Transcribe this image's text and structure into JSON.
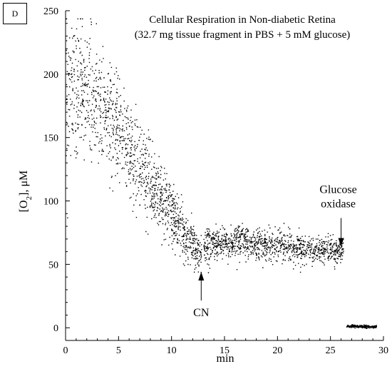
{
  "panel_label": "D",
  "chart_data": {
    "type": "scatter",
    "title": "Cellular Respiration in Non-diabetic Retina",
    "subtitle": "(32.7 mg tissue fragment in PBS + 5 mM glucose)",
    "xlabel": "min",
    "ylabel_main": "[O",
    "ylabel_sub": "2",
    "ylabel_tail": "], μM",
    "xlim": [
      0,
      30
    ],
    "ylim": [
      -10,
      250
    ],
    "xticks": [
      0,
      5,
      10,
      15,
      20,
      25,
      30
    ],
    "yticks": [
      0,
      50,
      100,
      150,
      200,
      250
    ],
    "grid": false,
    "marker_color": "#000000",
    "annotations": [
      {
        "label": "CN",
        "x": 12.8,
        "y": 44
      },
      {
        "label_line1": "Glucose",
        "label_line2": "oxidase",
        "x": 26.0,
        "y": 64
      }
    ],
    "segments": [
      {
        "x_start": 0.0,
        "x_end": 12.8,
        "n": 1300,
        "trend": [
          [
            0,
            190
          ],
          [
            2,
            185
          ],
          [
            4,
            165
          ],
          [
            6,
            140
          ],
          [
            8,
            115
          ],
          [
            10,
            90
          ],
          [
            11.5,
            70
          ],
          [
            12.8,
            58
          ]
        ],
        "spread": [
          [
            0,
            35
          ],
          [
            3,
            28
          ],
          [
            6,
            22
          ],
          [
            9,
            15
          ],
          [
            12.8,
            8
          ]
        ]
      },
      {
        "x_start": 13.0,
        "x_end": 26.2,
        "n": 1150,
        "trend": [
          [
            13,
            66
          ],
          [
            16,
            68
          ],
          [
            20,
            65
          ],
          [
            23,
            62
          ],
          [
            26.2,
            60
          ]
        ],
        "spread": [
          [
            13,
            8
          ],
          [
            26.2,
            6
          ]
        ]
      },
      {
        "x_start": 26.5,
        "x_end": 29.3,
        "n": 260,
        "trend": [
          [
            26.5,
            1.5
          ],
          [
            29.3,
            1.2
          ]
        ],
        "spread": [
          [
            26.5,
            0.6
          ],
          [
            29.3,
            0.6
          ]
        ]
      }
    ]
  }
}
